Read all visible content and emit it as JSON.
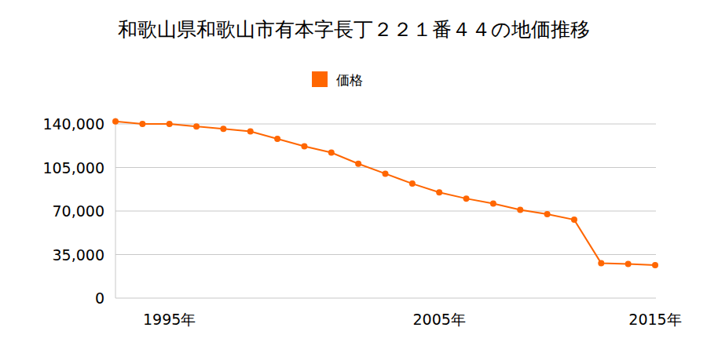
{
  "chart_data": {
    "type": "line",
    "title": "和歌山県和歌山市有本字長丁２２１番４４の地価推移",
    "categories": [
      null,
      null,
      "1995年",
      null,
      null,
      null,
      null,
      null,
      null,
      null,
      null,
      null,
      "2005年",
      null,
      null,
      null,
      null,
      null,
      null,
      null,
      "2015年"
    ],
    "series": [
      {
        "name": "価格",
        "color": "#ff6600",
        "marker": "circle",
        "values": [
          142000,
          140000,
          140000,
          138000,
          136000,
          134000,
          128000,
          122000,
          117000,
          108000,
          100000,
          92000,
          85000,
          80000,
          76000,
          71000,
          67500,
          63000,
          28000,
          27500,
          26500
        ]
      }
    ],
    "ylim": [
      0,
      145000
    ],
    "yticks": [
      0,
      {
        "value": 35000,
        "label": "35,000"
      },
      {
        "value": 70000,
        "label": "70,000"
      },
      {
        "value": 105000,
        "label": "105,000"
      },
      {
        "value": 140000,
        "label": "140,000"
      }
    ],
    "grid": true,
    "legend": "top"
  }
}
